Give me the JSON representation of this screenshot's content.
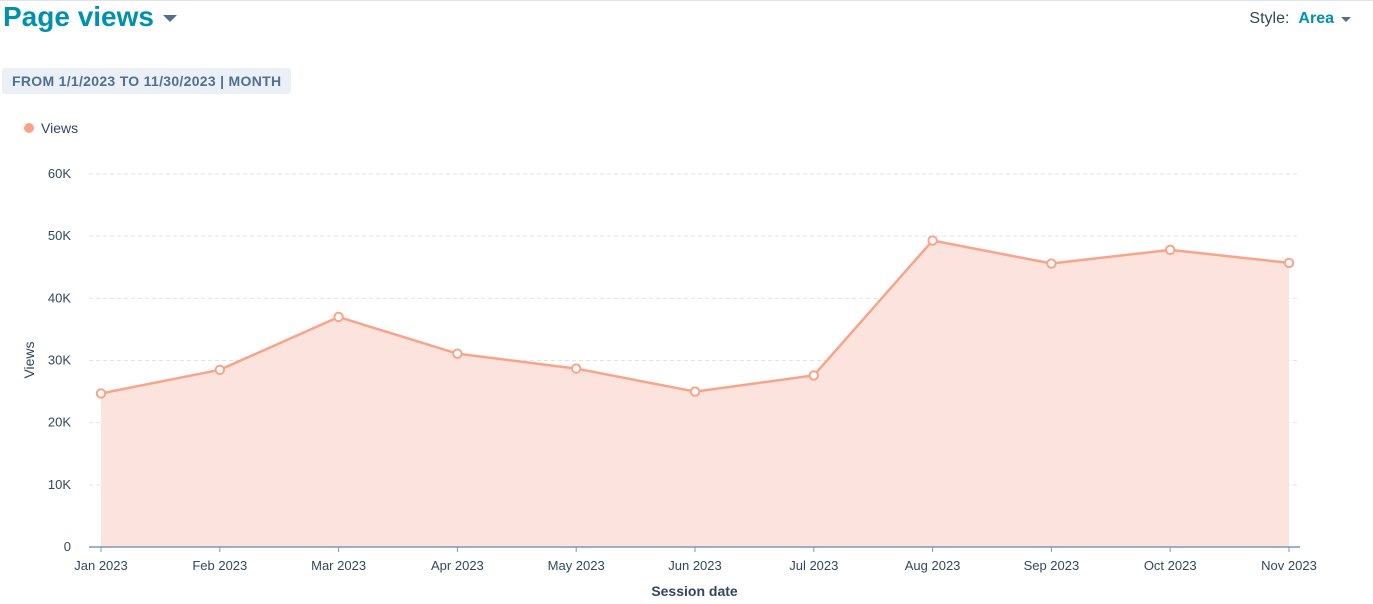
{
  "header": {
    "title": "Page views",
    "style_label": "Style:",
    "style_value": "Area"
  },
  "filter": {
    "date_range": "FROM 1/1/2023 TO 11/30/2023 | MONTH"
  },
  "legend": {
    "items": [
      {
        "label": "Views",
        "color": "#f8a48b"
      }
    ]
  },
  "colors": {
    "accent": "#0091ae",
    "series_line": "#f8a48b",
    "series_fill": "#fde3dd",
    "grid": "#dfe3eb",
    "axis": "#7c98b6",
    "text": "#33475b"
  },
  "chart_data": {
    "type": "area",
    "title": "Page views",
    "xlabel": "Session date",
    "ylabel": "Views",
    "categories": [
      "Jan 2023",
      "Feb 2023",
      "Mar 2023",
      "Apr 2023",
      "May 2023",
      "Jun 2023",
      "Jul 2023",
      "Aug 2023",
      "Sep 2023",
      "Oct 2023",
      "Nov 2023"
    ],
    "series": [
      {
        "name": "Views",
        "values": [
          24700,
          28500,
          37000,
          31100,
          28700,
          25000,
          27600,
          49300,
          45600,
          47800,
          45700
        ]
      }
    ],
    "ylim": [
      0,
      60000
    ],
    "yticks": [
      0,
      10000,
      20000,
      30000,
      40000,
      50000,
      60000
    ],
    "ytick_labels": [
      "0",
      "10K",
      "20K",
      "30K",
      "40K",
      "50K",
      "60K"
    ],
    "grid": true,
    "legend_position": "top-left"
  }
}
